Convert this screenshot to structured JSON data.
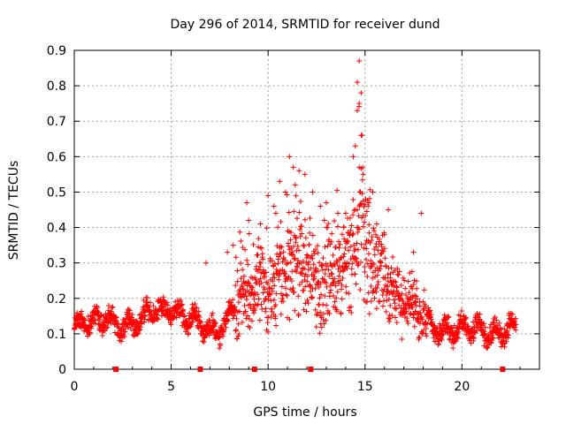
{
  "chart_data": {
    "type": "scatter",
    "title": "Day 296 of 2014, SRMTID for receiver dund",
    "xlabel": "GPS time / hours",
    "ylabel": "SRMTID / TECUs",
    "xlim": [
      0,
      24
    ],
    "ylim": [
      0,
      0.9
    ],
    "xticks": [
      0,
      5,
      10,
      15,
      20
    ],
    "yticks": [
      0,
      0.1,
      0.2,
      0.3,
      0.4,
      0.5,
      0.6,
      0.7,
      0.8,
      0.9
    ],
    "grid": true,
    "marker": "+",
    "color": "#ff0000",
    "zero_markers_x": [
      2.15,
      6.5,
      9.3,
      12.2,
      22.1
    ],
    "series": [
      {
        "name": "SRMTID",
        "trend": [
          [
            0.0,
            0.12
          ],
          [
            0.5,
            0.14
          ],
          [
            1.0,
            0.13
          ],
          [
            1.5,
            0.15
          ],
          [
            2.0,
            0.13
          ],
          [
            2.5,
            0.12
          ],
          [
            3.0,
            0.13
          ],
          [
            3.5,
            0.14
          ],
          [
            4.0,
            0.17
          ],
          [
            4.5,
            0.16
          ],
          [
            5.0,
            0.17
          ],
          [
            5.5,
            0.15
          ],
          [
            6.0,
            0.15
          ],
          [
            6.5,
            0.13
          ],
          [
            7.0,
            0.11
          ],
          [
            7.5,
            0.11
          ],
          [
            8.0,
            0.15
          ],
          [
            8.5,
            0.2
          ],
          [
            9.0,
            0.22
          ],
          [
            9.5,
            0.23
          ],
          [
            10.0,
            0.22
          ],
          [
            10.5,
            0.25
          ],
          [
            11.0,
            0.28
          ],
          [
            11.5,
            0.3
          ],
          [
            12.0,
            0.27
          ],
          [
            12.5,
            0.24
          ],
          [
            13.0,
            0.25
          ],
          [
            13.5,
            0.27
          ],
          [
            14.0,
            0.3
          ],
          [
            14.5,
            0.33
          ],
          [
            14.8,
            0.4
          ],
          [
            15.0,
            0.35
          ],
          [
            15.5,
            0.28
          ],
          [
            16.0,
            0.24
          ],
          [
            16.5,
            0.2
          ],
          [
            17.0,
            0.19
          ],
          [
            17.5,
            0.18
          ],
          [
            18.0,
            0.15
          ],
          [
            18.5,
            0.12
          ],
          [
            19.0,
            0.11
          ],
          [
            19.5,
            0.11
          ],
          [
            20.0,
            0.12
          ],
          [
            20.5,
            0.12
          ],
          [
            21.0,
            0.11
          ],
          [
            21.5,
            0.1
          ],
          [
            22.0,
            0.1
          ],
          [
            22.5,
            0.12
          ],
          [
            22.8,
            0.13
          ]
        ],
        "peaks": [
          [
            14.7,
            0.87
          ],
          [
            14.6,
            0.81
          ],
          [
            14.8,
            0.78
          ],
          [
            14.7,
            0.75
          ],
          [
            14.6,
            0.73
          ],
          [
            14.8,
            0.66
          ],
          [
            14.5,
            0.63
          ],
          [
            14.4,
            0.6
          ],
          [
            14.7,
            0.57
          ],
          [
            14.9,
            0.55
          ],
          [
            11.1,
            0.6
          ],
          [
            11.3,
            0.57
          ],
          [
            11.6,
            0.56
          ],
          [
            11.9,
            0.55
          ],
          [
            10.6,
            0.53
          ],
          [
            10.9,
            0.5
          ],
          [
            11.4,
            0.52
          ],
          [
            12.3,
            0.5
          ],
          [
            12.7,
            0.46
          ],
          [
            13.0,
            0.47
          ],
          [
            13.6,
            0.44
          ],
          [
            14.0,
            0.44
          ],
          [
            15.4,
            0.5
          ],
          [
            15.2,
            0.47
          ],
          [
            16.2,
            0.45
          ],
          [
            17.9,
            0.44
          ],
          [
            8.9,
            0.47
          ],
          [
            9.0,
            0.42
          ],
          [
            10.0,
            0.49
          ],
          [
            10.3,
            0.46
          ],
          [
            8.2,
            0.35
          ],
          [
            7.9,
            0.33
          ],
          [
            6.8,
            0.3
          ],
          [
            9.6,
            0.41
          ],
          [
            10.4,
            0.44
          ],
          [
            12.9,
            0.42
          ],
          [
            13.9,
            0.4
          ],
          [
            15.6,
            0.41
          ],
          [
            16.0,
            0.38
          ],
          [
            17.5,
            0.33
          ]
        ]
      }
    ]
  }
}
